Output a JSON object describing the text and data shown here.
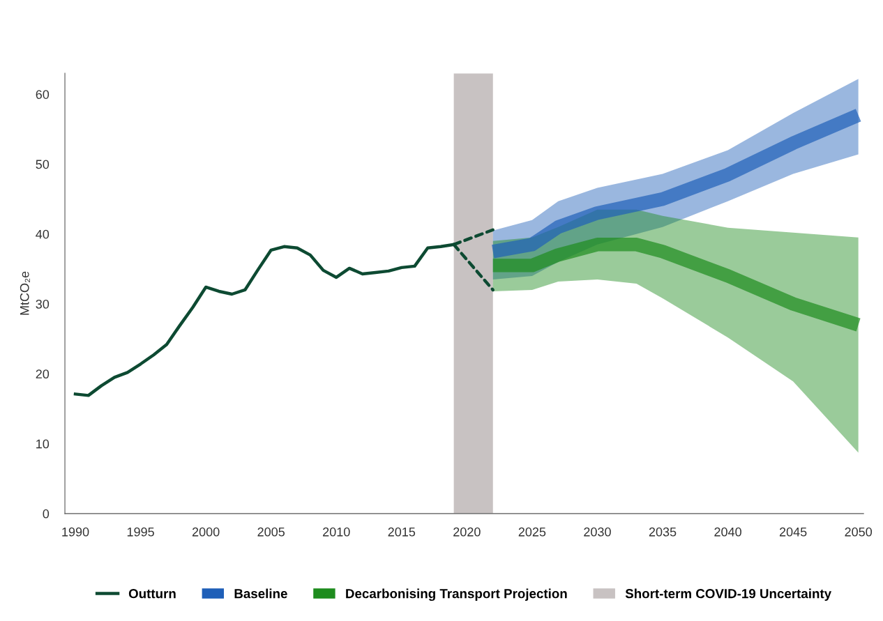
{
  "chart_data": {
    "type": "line",
    "ylabel": "MtCO₂e",
    "xlim": [
      1989.2,
      2050.4
    ],
    "ylim": [
      0,
      63
    ],
    "xticks": [
      1990,
      1995,
      2000,
      2005,
      2010,
      2015,
      2020,
      2025,
      2030,
      2035,
      2040,
      2045,
      2050
    ],
    "yticks": [
      0,
      10,
      20,
      30,
      40,
      50,
      60
    ],
    "grid": false,
    "legend": "bottom",
    "series": [
      {
        "name": "Outturn",
        "color": "#0d4a32",
        "line_style": "solid",
        "x": [
          1990,
          1991,
          1992,
          1993,
          1994,
          1995,
          1996,
          1997,
          1998,
          1999,
          2000,
          2001,
          2002,
          2003,
          2004,
          2005,
          2006,
          2007,
          2008,
          2009,
          2010,
          2011,
          2012,
          2013,
          2014,
          2015,
          2016,
          2017,
          2018,
          2019
        ],
        "values": [
          17.1,
          16.9,
          18.3,
          19.5,
          20.2,
          21.4,
          22.7,
          24.2,
          26.9,
          29.5,
          32.4,
          31.8,
          31.4,
          32.0,
          34.9,
          37.7,
          38.2,
          38.0,
          37.0,
          34.8,
          33.8,
          35.1,
          34.3,
          34.5,
          34.7,
          35.2,
          35.4,
          38.0,
          38.2,
          38.5
        ]
      },
      {
        "color": "#0d4a32",
        "line_style": "dashed",
        "x": [
          2019,
          2022
        ],
        "values": [
          38.5,
          40.6
        ]
      },
      {
        "color": "#0d4a32",
        "line_style": "dashed",
        "x": [
          2019,
          2022
        ],
        "values": [
          38.5,
          32.0
        ]
      },
      {
        "name": "Baseline",
        "color": "#1f5fb8",
        "x": [
          2022,
          2025,
          2027,
          2030,
          2035,
          2040,
          2045,
          2050
        ],
        "values": [
          37.5,
          38.5,
          41,
          43,
          45,
          48.5,
          53,
          57
        ],
        "lower": [
          33.5,
          34,
          36,
          38.5,
          41,
          44.7,
          48.6,
          51.4
        ],
        "upper": [
          40.5,
          42.0,
          44.7,
          46.6,
          48.6,
          52,
          57.3,
          62.2
        ]
      },
      {
        "name": "Decarbonising Transport Projection",
        "color": "#1e8c1e",
        "x": [
          2022,
          2025,
          2027,
          2030,
          2033,
          2035,
          2040,
          2045,
          2050
        ],
        "values": [
          35.5,
          35.5,
          37,
          38.5,
          38.5,
          37.5,
          34,
          30,
          27
        ],
        "lower": [
          31.8,
          32.0,
          33.2,
          33.5,
          32.9,
          30.8,
          25.2,
          18.9,
          8.7
        ],
        "upper": [
          39,
          39.5,
          41,
          43.5,
          43.5,
          42.6,
          40.9,
          40.2,
          39.5
        ]
      }
    ],
    "bands": [
      {
        "axis": "x",
        "from": 2019,
        "to": 2022,
        "label": "Short-term COVID-19 Uncertainty",
        "color": "#c8c2c2"
      }
    ]
  }
}
